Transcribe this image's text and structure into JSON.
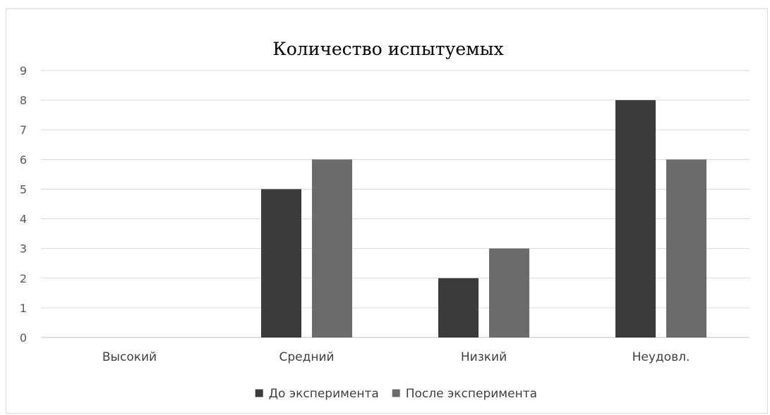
{
  "chart_data": {
    "type": "bar",
    "title": "Количество испытуемых",
    "categories": [
      "Высокий",
      "Средний",
      "Низкий",
      "Неудовл."
    ],
    "series": [
      {
        "name": "До эксперимента",
        "values": [
          0,
          5,
          2,
          8
        ],
        "color": "#3b3b3b"
      },
      {
        "name": "После эксперимента",
        "values": [
          0,
          6,
          3,
          6
        ],
        "color": "#6b6b6b"
      }
    ],
    "xlabel": "",
    "ylabel": "",
    "ylim": [
      0,
      9
    ],
    "yticks": [
      "0",
      "1",
      "2",
      "3",
      "4",
      "5",
      "6",
      "7",
      "8",
      "9"
    ],
    "grid": true,
    "legend_position": "bottom"
  }
}
